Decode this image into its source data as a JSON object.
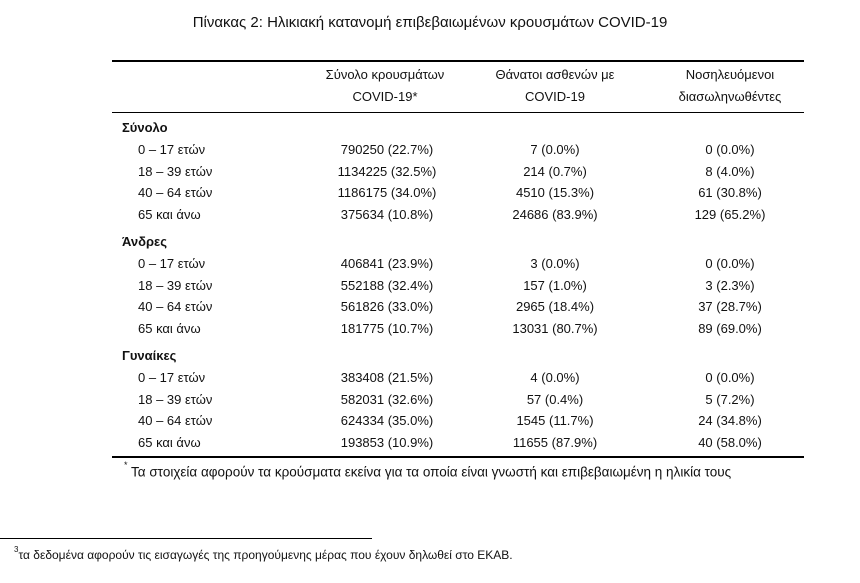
{
  "title": "Πίνακας 2: Ηλικιακή κατανομή επιβεβαιωμένων κρουσμάτων COVID-19",
  "headers": {
    "cases": "Σύνολο κρουσμάτων\nCOVID-19*",
    "deaths": "Θάνατοι ασθενών με\nCOVID-19",
    "intubated": "Νοσηλευόμενοι\nδιασωληνωθέντες"
  },
  "groups": [
    {
      "name": "Σύνολο",
      "rows": [
        {
          "age": "0 – 17 ετών",
          "cases": "790250 (22.7%)",
          "deaths": "7 (0.0%)",
          "intubated": "0 (0.0%)"
        },
        {
          "age": "18 – 39 ετών",
          "cases": "1134225 (32.5%)",
          "deaths": "214 (0.7%)",
          "intubated": "8 (4.0%)"
        },
        {
          "age": "40 – 64 ετών",
          "cases": "1186175 (34.0%)",
          "deaths": "4510 (15.3%)",
          "intubated": "61 (30.8%)"
        },
        {
          "age": "65 και άνω",
          "cases": "375634 (10.8%)",
          "deaths": "24686 (83.9%)",
          "intubated": "129 (65.2%)"
        }
      ]
    },
    {
      "name": "Άνδρες",
      "rows": [
        {
          "age": "0 – 17 ετών",
          "cases": "406841 (23.9%)",
          "deaths": "3 (0.0%)",
          "intubated": "0 (0.0%)"
        },
        {
          "age": "18 – 39 ετών",
          "cases": "552188 (32.4%)",
          "deaths": "157 (1.0%)",
          "intubated": "3 (2.3%)"
        },
        {
          "age": "40 – 64 ετών",
          "cases": "561826 (33.0%)",
          "deaths": "2965 (18.4%)",
          "intubated": "37 (28.7%)"
        },
        {
          "age": "65 και άνω",
          "cases": "181775 (10.7%)",
          "deaths": "13031 (80.7%)",
          "intubated": "89 (69.0%)"
        }
      ]
    },
    {
      "name": "Γυναίκες",
      "rows": [
        {
          "age": "0 – 17 ετών",
          "cases": "383408 (21.5%)",
          "deaths": "4 (0.0%)",
          "intubated": "0 (0.0%)"
        },
        {
          "age": "18 – 39 ετών",
          "cases": "582031 (32.6%)",
          "deaths": "57 (0.4%)",
          "intubated": "5 (7.2%)"
        },
        {
          "age": "40 – 64 ετών",
          "cases": "624334 (35.0%)",
          "deaths": "1545 (11.7%)",
          "intubated": "24 (34.8%)"
        },
        {
          "age": "65 και άνω",
          "cases": "193853 (10.9%)",
          "deaths": "11655 (87.9%)",
          "intubated": "40 (58.0%)"
        }
      ]
    }
  ],
  "note": {
    "marker": "*",
    "text": " Τα στοιχεία αφορούν τα κρούσματα εκείνα για τα οποία είναι γνωστή και επιβεβαιωμένη η ηλικία τους"
  },
  "footnote": {
    "marker": "3",
    "text": "τα δεδομένα αφορούν τις εισαγωγές της προηγούμενης μέρας που έχουν δηλωθεί στο ΕΚΑΒ."
  }
}
